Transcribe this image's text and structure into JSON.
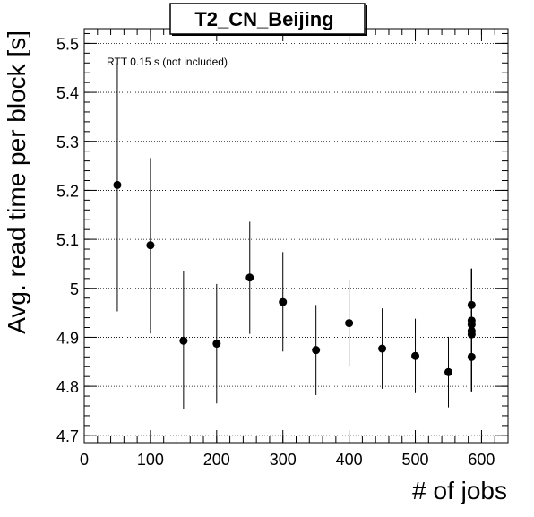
{
  "chart_data": {
    "type": "scatter",
    "title": "T2_CN_Beijing",
    "annotation": "RTT 0.15 s (not included)",
    "xlabel": "# of jobs",
    "ylabel": "Avg. read time per block [s]",
    "xlim": [
      0,
      640
    ],
    "ylim": [
      4.685,
      5.53
    ],
    "x_ticks": [
      0,
      100,
      200,
      300,
      400,
      500,
      600
    ],
    "x_tick_labels": [
      "0",
      "100",
      "200",
      "300",
      "400",
      "500",
      "600"
    ],
    "y_ticks": [
      4.7,
      4.8,
      4.9,
      5.0,
      5.1,
      5.2,
      5.3,
      5.4,
      5.5
    ],
    "y_tick_labels": [
      "4.7",
      "4.8",
      "4.9",
      "5",
      "5.1",
      "5.2",
      "5.3",
      "5.4",
      "5.5"
    ],
    "grid": "horizontal dotted",
    "legend": "none",
    "marker_color": "#000000",
    "points": [
      {
        "x": 50,
        "y": 5.211,
        "yerr_low": 4.953,
        "yerr_high": 5.46
      },
      {
        "x": 100,
        "y": 5.088,
        "yerr_low": 4.908,
        "yerr_high": 5.266
      },
      {
        "x": 150,
        "y": 4.893,
        "yerr_low": 4.753,
        "yerr_high": 5.035
      },
      {
        "x": 200,
        "y": 4.887,
        "yerr_low": 4.765,
        "yerr_high": 5.009
      },
      {
        "x": 250,
        "y": 5.022,
        "yerr_low": 4.907,
        "yerr_high": 5.136
      },
      {
        "x": 300,
        "y": 4.972,
        "yerr_low": 4.871,
        "yerr_high": 5.074
      },
      {
        "x": 350,
        "y": 4.874,
        "yerr_low": 4.782,
        "yerr_high": 4.966
      },
      {
        "x": 400,
        "y": 4.929,
        "yerr_low": 4.84,
        "yerr_high": 5.018
      },
      {
        "x": 450,
        "y": 4.877,
        "yerr_low": 4.795,
        "yerr_high": 4.959
      },
      {
        "x": 500,
        "y": 4.862,
        "yerr_low": 4.786,
        "yerr_high": 4.938
      },
      {
        "x": 550,
        "y": 4.829,
        "yerr_low": 4.757,
        "yerr_high": 4.901
      },
      {
        "x": 585,
        "y": 4.966,
        "yerr_low": 4.79,
        "yerr_high": 5.04
      },
      {
        "x": 585,
        "y": 4.934,
        "yerr_low": 4.79,
        "yerr_high": 5.04
      },
      {
        "x": 585,
        "y": 4.926,
        "yerr_low": 4.79,
        "yerr_high": 5.04
      },
      {
        "x": 585,
        "y": 4.913,
        "yerr_low": 4.79,
        "yerr_high": 5.04
      },
      {
        "x": 585,
        "y": 4.906,
        "yerr_low": 4.79,
        "yerr_high": 5.04
      },
      {
        "x": 585,
        "y": 4.86,
        "yerr_low": 4.79,
        "yerr_high": 5.04
      }
    ]
  }
}
